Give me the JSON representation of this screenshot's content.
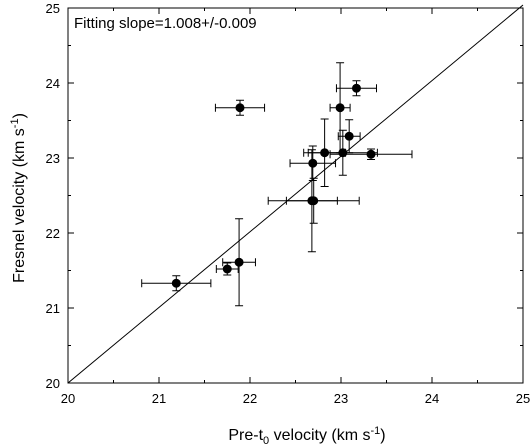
{
  "chart_data": {
    "type": "scatter",
    "annotation": "Fitting slope=1.008+/-0.009",
    "xlabel": {
      "prefix": "Pre-t",
      "sub": "0",
      "suffix": " velocity (km s",
      "sup": "-1",
      "end": ")"
    },
    "ylabel": {
      "prefix": "Fresnel velocity (km s",
      "sup": "-1",
      "end": ")"
    },
    "xlim": [
      20,
      25
    ],
    "ylim": [
      20,
      25
    ],
    "xticks": [
      20,
      21,
      22,
      23,
      24,
      25
    ],
    "yticks": [
      20,
      21,
      22,
      23,
      24,
      25
    ],
    "grid": false,
    "fit_line": {
      "x": [
        20,
        25
      ],
      "y": [
        20,
        25.04
      ]
    },
    "points": [
      {
        "x": 21.19,
        "xerr": 0.38,
        "y": 21.33,
        "yerr": 0.1
      },
      {
        "x": 21.75,
        "xerr": 0.12,
        "y": 21.52,
        "yerr": 0.08
      },
      {
        "x": 21.88,
        "xerr": 0.18,
        "y": 21.61,
        "yerr": 0.58
      },
      {
        "x": 21.89,
        "xerr": 0.27,
        "y": 23.67,
        "yerr": 0.1
      },
      {
        "x": 22.68,
        "xerr": 0.28,
        "y": 22.43,
        "yerr": 0.68
      },
      {
        "x": 22.7,
        "xerr": 0.5,
        "y": 22.43,
        "yerr": 0.3
      },
      {
        "x": 22.69,
        "xerr": 0.25,
        "y": 22.93,
        "yerr": 0.23
      },
      {
        "x": 22.82,
        "xerr": 0.23,
        "y": 23.07,
        "yerr": 0.45
      },
      {
        "x": 22.99,
        "xerr": 0.11,
        "y": 23.67,
        "yerr": 0.6
      },
      {
        "x": 23.02,
        "xerr": 0.38,
        "y": 23.07,
        "yerr": 0.3
      },
      {
        "x": 23.09,
        "xerr": 0.12,
        "y": 23.29,
        "yerr": 0.22
      },
      {
        "x": 23.17,
        "xerr": 0.22,
        "y": 23.93,
        "yerr": 0.1
      },
      {
        "x": 23.33,
        "xerr": 0.45,
        "y": 23.05,
        "yerr": 0.07
      }
    ]
  }
}
